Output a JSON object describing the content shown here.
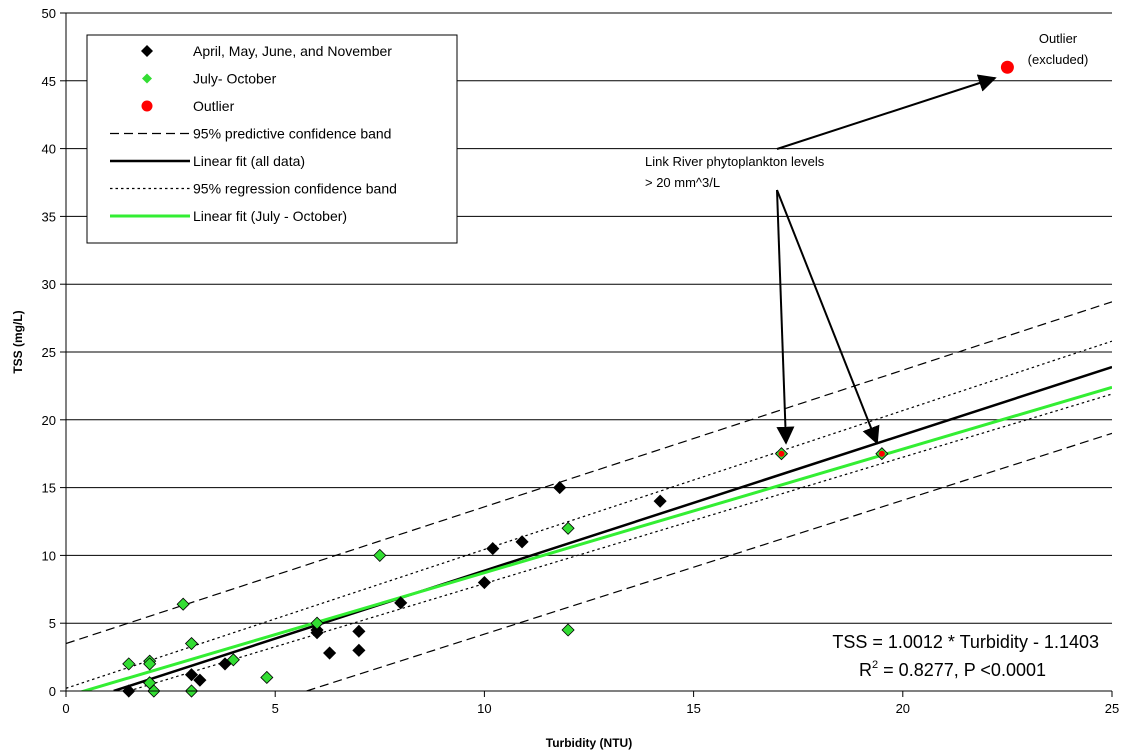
{
  "chart_data": {
    "type": "scatter",
    "xlabel": "Turbidity (NTU)",
    "ylabel": "TSS (mg/L)",
    "xlim": [
      0,
      25
    ],
    "ylim": [
      0,
      50
    ],
    "x_ticks": [
      "0",
      "5",
      "10",
      "15",
      "20",
      "25"
    ],
    "y_ticks": [
      "0",
      "5",
      "10",
      "15",
      "20",
      "25",
      "30",
      "35",
      "40",
      "45",
      "50"
    ],
    "grid": "horizontal",
    "legend_position": "top-left",
    "legend": [
      "April, May, June, and November",
      "July- October",
      "Outlier",
      "95% predictive confidence band",
      "Linear fit (all data)",
      "95% regression confidence band",
      "Linear fit (July - October)"
    ],
    "colors": {
      "april_series": "#000000",
      "july_series": "#33dd33",
      "outlier": "#ff0000",
      "fit_all": "#000000",
      "fit_july": "#33ee33"
    },
    "series": [
      {
        "name": "April, May, June, and November",
        "points": [
          [
            1.5,
            0.0
          ],
          [
            2.0,
            0.6
          ],
          [
            3.0,
            1.2
          ],
          [
            3.2,
            0.8
          ],
          [
            3.8,
            2.0
          ],
          [
            6.0,
            4.5
          ],
          [
            6.0,
            4.3
          ],
          [
            6.3,
            2.8
          ],
          [
            7.0,
            4.4
          ],
          [
            7.0,
            3.0
          ],
          [
            8.0,
            6.5
          ],
          [
            10.0,
            8.0
          ],
          [
            10.2,
            10.5
          ],
          [
            10.9,
            11.0
          ],
          [
            11.8,
            15.0
          ],
          [
            14.2,
            14.0
          ]
        ]
      },
      {
        "name": "July- October",
        "points": [
          [
            1.5,
            2.0
          ],
          [
            2.0,
            2.2
          ],
          [
            2.0,
            2.0
          ],
          [
            2.0,
            0.6
          ],
          [
            2.1,
            0.0
          ],
          [
            2.8,
            6.4
          ],
          [
            3.0,
            3.5
          ],
          [
            3.0,
            0.0
          ],
          [
            4.0,
            2.3
          ],
          [
            4.8,
            1.0
          ],
          [
            6.0,
            5.0
          ],
          [
            7.5,
            10.0
          ],
          [
            12.0,
            12.0
          ],
          [
            12.0,
            4.5
          ],
          [
            17.1,
            17.5
          ],
          [
            19.5,
            17.5
          ]
        ]
      },
      {
        "name": "Outlier",
        "points": [
          [
            22.5,
            46.0
          ]
        ]
      }
    ],
    "lines": [
      {
        "name": "95% predictive confidence band",
        "style": "dashed",
        "points": [
          [
            0,
            3.5
          ],
          [
            25,
            28.7
          ]
        ]
      },
      {
        "name": "95% predictive confidence band",
        "style": "dashed",
        "points": [
          [
            5.75,
            0
          ],
          [
            25,
            19.0
          ]
        ]
      },
      {
        "name": "Linear fit (all data)",
        "style": "solid",
        "points": [
          [
            1.14,
            0
          ],
          [
            25,
            23.89
          ]
        ]
      },
      {
        "name": "95% regression confidence band",
        "style": "dotted",
        "points": [
          [
            0,
            0.2
          ],
          [
            25,
            25.8
          ]
        ]
      },
      {
        "name": "95% regression confidence band",
        "style": "dotted",
        "points": [
          [
            1.5,
            0
          ],
          [
            25,
            21.9
          ]
        ]
      },
      {
        "name": "Linear fit (July - October)",
        "style": "solid-green",
        "points": [
          [
            0,
            -0.4
          ],
          [
            25,
            22.4
          ]
        ]
      }
    ],
    "annotations": {
      "outlier": [
        "Outlier",
        "(excluded)"
      ],
      "phyto": [
        "Link River phytoplankton levels",
        "> 20 mm^3/L"
      ],
      "equation": "TSS = 1.0012 * Turbidity - 1.1403",
      "r2_prefix": "R",
      "r2_sup": "2",
      "r2_suffix": " = 0.8277, P <0.0001"
    }
  }
}
